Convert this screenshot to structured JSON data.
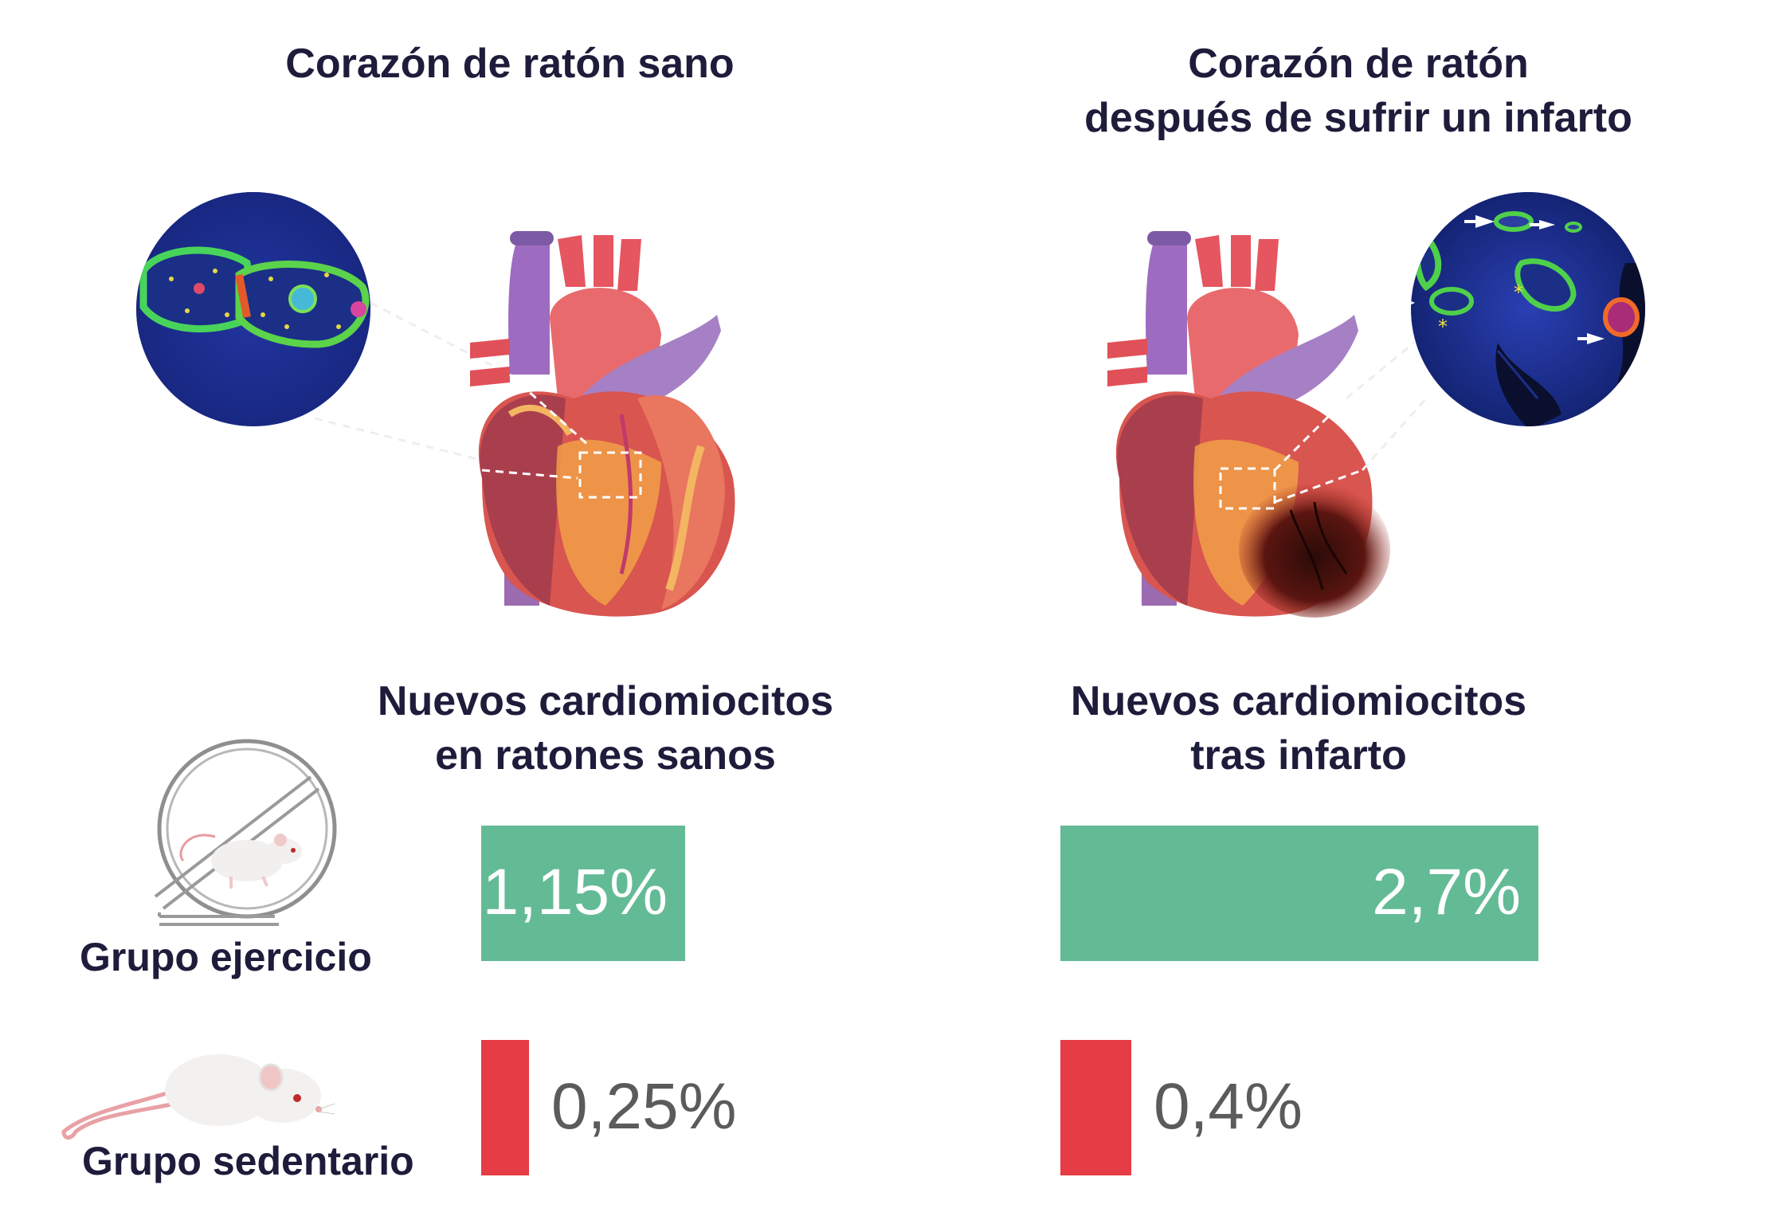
{
  "titles": {
    "healthy": "Corazón de ratón sano",
    "infarct_line1": "Corazón de ratón",
    "infarct_line2": "después de sufrir un infarto"
  },
  "sections": {
    "healthy_line1": "Nuevos cardiomiocitos",
    "healthy_line2": "en ratones sanos",
    "infarct_line1": "Nuevos cardiomiocitos",
    "infarct_line2": "tras infarto"
  },
  "groups": {
    "exercise": "Grupo ejercicio",
    "sedentary": "Grupo sedentario"
  },
  "icons": [
    "micrograph-healthy-icon",
    "heart-healthy-icon",
    "heart-infarct-icon",
    "micrograph-infarct-icon",
    "hamster-wheel-mouse-icon",
    "mouse-icon"
  ],
  "colors": {
    "exercise": "#63bb96",
    "sedentary": "#e63c45",
    "exercise_text": "#ffffff",
    "sedentary_text": "#5b5b5b"
  },
  "chart_data": [
    {
      "type": "bar",
      "categories": [
        "Grupo ejercicio",
        "Grupo sedentario"
      ],
      "values": [
        1.15,
        0.25
      ],
      "labels": [
        "1,15%",
        "0,25%"
      ],
      "unit": "%",
      "title": "Nuevos cardiomiocitos en ratones sanos"
    },
    {
      "type": "bar",
      "categories": [
        "Grupo ejercicio",
        "Grupo sedentario"
      ],
      "values": [
        2.7,
        0.4
      ],
      "labels": [
        "2,7%",
        "0,4%"
      ],
      "unit": "%",
      "title": "Nuevos cardiomiocitos tras infarto"
    }
  ]
}
